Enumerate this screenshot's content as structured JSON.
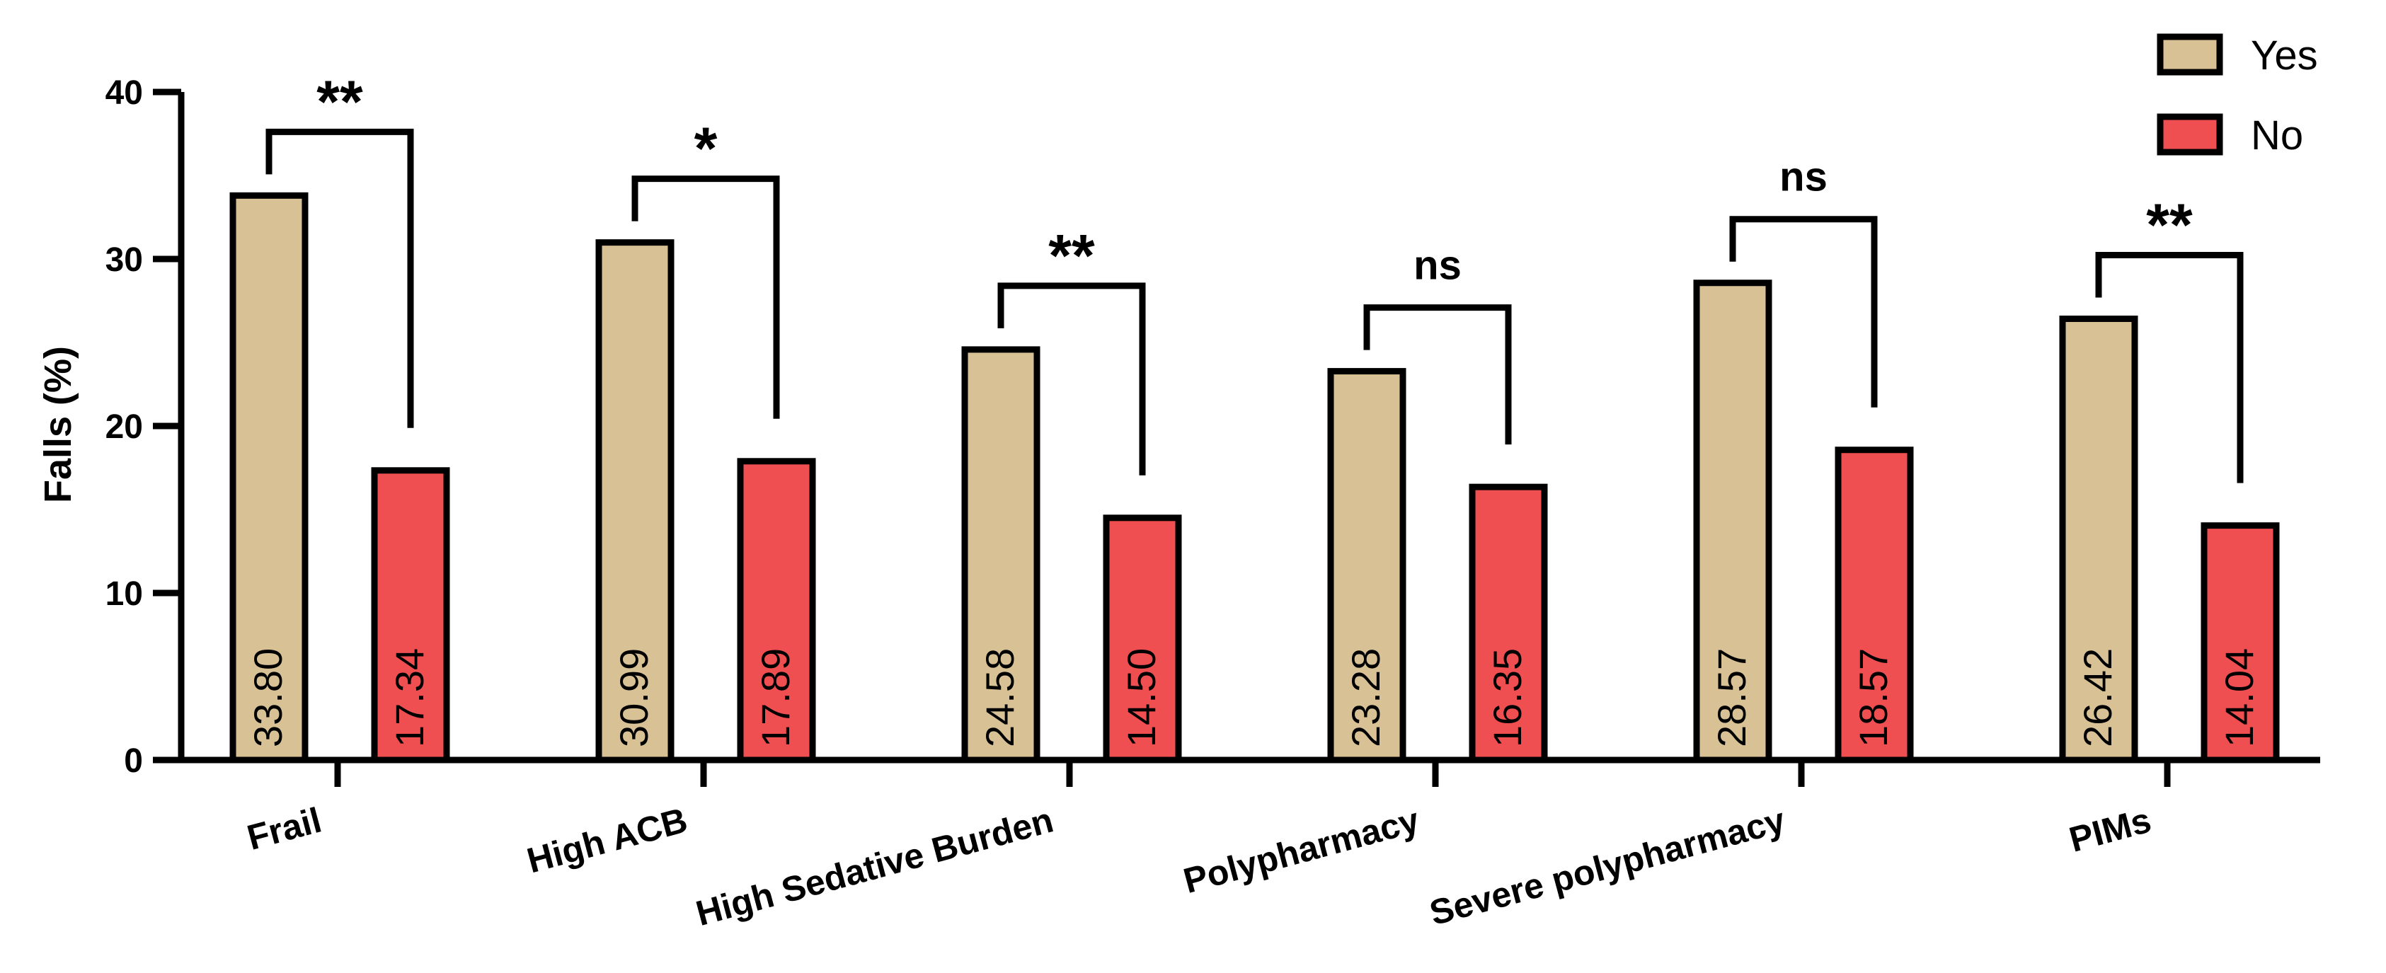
{
  "chart_data": {
    "type": "bar",
    "ylabel": "Falls (%)",
    "xlabel": "",
    "ylim": [
      0,
      40
    ],
    "yticks": [
      0,
      10,
      20,
      30,
      40
    ],
    "grid": false,
    "legend_position": "top-right",
    "categories": [
      "Frail",
      "High ACB",
      "High Sedative Burden",
      "Polypharmacy",
      "Severe polypharmacy",
      "PIMs"
    ],
    "series": [
      {
        "name": "Yes",
        "color": "#d8c195",
        "values": [
          33.8,
          30.99,
          24.58,
          23.28,
          28.57,
          26.42
        ]
      },
      {
        "name": "No",
        "color": "#ef4f51",
        "values": [
          17.34,
          17.89,
          14.5,
          16.35,
          18.57,
          14.04
        ]
      }
    ],
    "value_labels": [
      [
        "33.80",
        "17.34"
      ],
      [
        "30.99",
        "17.89"
      ],
      [
        "24.58",
        "14.50"
      ],
      [
        "23.28",
        "16.35"
      ],
      [
        "28.57",
        "18.57"
      ],
      [
        "26.42",
        "14.04"
      ]
    ],
    "significance": [
      "**",
      "*",
      "**",
      "ns",
      "ns",
      "**"
    ]
  }
}
